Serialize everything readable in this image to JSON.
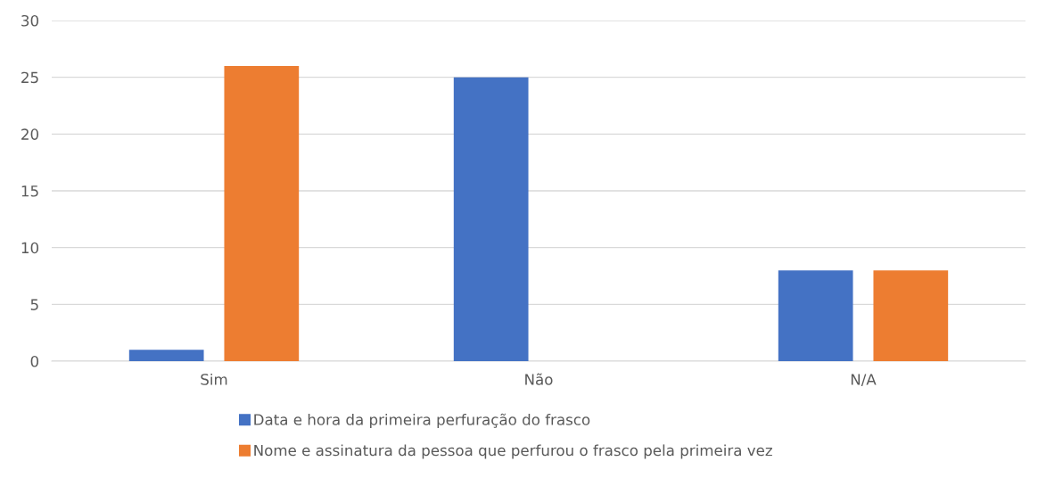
{
  "chart_data": {
    "type": "bar",
    "categories": [
      "Sim",
      "Não",
      "N/A"
    ],
    "series": [
      {
        "name": "Data e hora da primeira perfuração do frasco",
        "color": "#4472c4",
        "values": [
          1,
          25,
          8
        ]
      },
      {
        "name": "Nome e assinatura da pessoa que perfurou o frasco pela primeira vez",
        "color": "#ed7d31",
        "values": [
          26,
          0,
          8
        ]
      }
    ],
    "ylim": [
      0,
      30
    ],
    "yticks": [
      0,
      5,
      10,
      15,
      20,
      25,
      30
    ],
    "grid": "y",
    "legend": "bottom"
  }
}
